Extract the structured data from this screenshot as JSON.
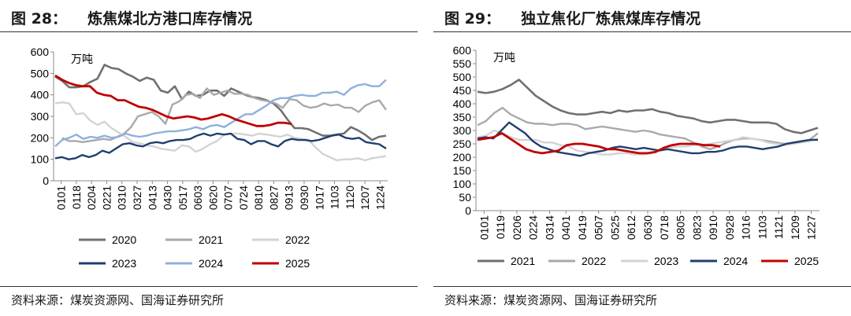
{
  "charts": [
    {
      "figure_no": "图 28：",
      "title": "炼焦煤北方港口库存情况",
      "source": "资料来源：煤炭资源网、国海证券研究所"
    },
    {
      "figure_no": "图 29：",
      "title": "独立焦化厂炼焦煤库存情况",
      "source": "资料来源：煤炭资源网、国海证券研究所"
    }
  ],
  "chart_data": [
    {
      "type": "line",
      "title": "炼焦煤北方港口库存情况",
      "unit_label": "万吨",
      "ylim": [
        0,
        600
      ],
      "yticks": [
        "0",
        "100",
        "200",
        "300",
        "400",
        "500",
        "600"
      ],
      "x_ticks": [
        "0101",
        "0118",
        "0204",
        "0221",
        "0310",
        "0327",
        "0413",
        "0430",
        "0517",
        "0603",
        "0620",
        "0707",
        "0724",
        "0810",
        "0827",
        "0913",
        "0930",
        "1017",
        "1103",
        "1120",
        "1207",
        "1224"
      ],
      "legend": [
        [
          "2020",
          "2021",
          "2022"
        ],
        [
          "2023",
          "2024",
          "2025"
        ]
      ],
      "series": [
        {
          "name": "2020",
          "color": "#707070",
          "values": [
            485,
            465,
            435,
            435,
            440,
            460,
            475,
            540,
            525,
            520,
            500,
            485,
            465,
            480,
            470,
            420,
            410,
            440,
            380,
            415,
            395,
            400,
            420,
            420,
            395,
            430,
            415,
            400,
            390,
            385,
            375,
            360,
            330,
            285,
            245,
            245,
            240,
            225,
            210,
            210,
            215,
            220,
            250,
            235,
            215,
            190,
            205,
            210
          ]
        },
        {
          "name": "2021",
          "color": "#a9a9a9",
          "values": [
            null,
            200,
            185,
            185,
            180,
            185,
            190,
            195,
            190,
            205,
            220,
            250,
            300,
            310,
            320,
            300,
            265,
            355,
            370,
            400,
            405,
            385,
            430,
            400,
            410,
            420,
            405,
            405,
            400,
            385,
            375,
            370,
            360,
            340,
            380,
            375,
            350,
            340,
            345,
            360,
            350,
            355,
            340,
            340,
            320,
            350,
            365,
            375,
            330
          ]
        },
        {
          "name": "2022",
          "color": "#d3d3d3",
          "values": [
            360,
            365,
            360,
            310,
            315,
            280,
            260,
            275,
            245,
            225,
            205,
            180,
            175,
            165,
            160,
            150,
            145,
            140,
            165,
            160,
            135,
            150,
            170,
            185,
            215,
            220,
            220,
            215,
            210,
            220,
            215,
            210,
            205,
            215,
            200,
            195,
            190,
            155,
            125,
            110,
            95,
            100,
            100,
            105,
            95,
            105,
            110,
            115
          ]
        },
        {
          "name": "2023",
          "color": "#1f3f6e",
          "values": [
            105,
            110,
            100,
            105,
            120,
            110,
            120,
            140,
            130,
            150,
            170,
            175,
            165,
            160,
            175,
            180,
            175,
            185,
            190,
            190,
            195,
            210,
            220,
            210,
            220,
            215,
            220,
            195,
            190,
            170,
            185,
            185,
            170,
            160,
            185,
            195,
            190,
            190,
            185,
            190,
            200,
            210,
            215,
            200,
            195,
            200,
            180,
            175,
            170,
            150
          ]
        },
        {
          "name": "2024",
          "color": "#8fb0dc",
          "values": [
            160,
            190,
            200,
            215,
            195,
            205,
            200,
            210,
            200,
            205,
            220,
            210,
            205,
            210,
            220,
            225,
            230,
            230,
            235,
            240,
            250,
            240,
            255,
            260,
            250,
            270,
            290,
            310,
            310,
            330,
            350,
            375,
            385,
            385,
            395,
            400,
            395,
            395,
            410,
            410,
            415,
            400,
            430,
            445,
            450,
            440,
            440,
            470
          ]
        },
        {
          "name": "2025",
          "color": "#c00000",
          "values": [
            490,
            470,
            455,
            445,
            440,
            440,
            410,
            400,
            395,
            375,
            375,
            360,
            345,
            340,
            330,
            315,
            300,
            290,
            295,
            300,
            295,
            285,
            290,
            300,
            310,
            300,
            285,
            275,
            265,
            255,
            255,
            260,
            270,
            270,
            265
          ]
        }
      ]
    },
    {
      "type": "line",
      "title": "独立焦化厂炼焦煤库存情况",
      "unit_label": "万吨",
      "ylim": [
        0,
        600
      ],
      "yticks": [
        "0",
        "50",
        "100",
        "150",
        "200",
        "250",
        "300",
        "350",
        "400",
        "450",
        "500",
        "550",
        "600"
      ],
      "x_ticks": [
        "0101",
        "0119",
        "0206",
        "0224",
        "0314",
        "0401",
        "0419",
        "0507",
        "0525",
        "0612",
        "0630",
        "0718",
        "0805",
        "0823",
        "0910",
        "0928",
        "1016",
        "1103",
        "1121",
        "1209",
        "1227"
      ],
      "legend": [
        [
          "2021",
          "2022",
          "2023",
          "2024",
          "2025"
        ]
      ],
      "series": [
        {
          "name": "2021",
          "color": "#707070",
          "values": [
            445,
            440,
            445,
            455,
            470,
            490,
            460,
            430,
            410,
            390,
            375,
            365,
            360,
            360,
            365,
            370,
            365,
            375,
            370,
            375,
            375,
            380,
            370,
            365,
            355,
            350,
            345,
            335,
            330,
            335,
            340,
            340,
            335,
            330,
            330,
            330,
            325,
            305,
            295,
            290,
            300,
            310
          ]
        },
        {
          "name": "2022",
          "color": "#a9a9a9",
          "values": [
            320,
            335,
            365,
            385,
            360,
            345,
            330,
            325,
            325,
            320,
            325,
            325,
            320,
            305,
            310,
            315,
            310,
            305,
            300,
            295,
            300,
            295,
            285,
            280,
            275,
            270,
            255,
            240,
            230,
            240,
            255,
            265,
            270,
            270,
            265,
            260,
            255,
            250,
            255,
            260,
            265,
            290
          ]
        },
        {
          "name": "2023",
          "color": "#d3d3d3",
          "values": [
            275,
            280,
            300,
            290,
            275,
            265,
            265,
            265,
            255,
            255,
            245,
            240,
            225,
            220,
            215,
            210,
            210,
            215,
            215,
            210,
            210,
            215,
            225,
            235,
            240,
            240,
            245,
            245,
            250,
            255,
            260,
            265,
            275,
            270,
            265,
            255,
            250,
            245,
            250,
            255,
            260,
            270
          ]
        },
        {
          "name": "2024",
          "color": "#1f3f6e",
          "values": [
            270,
            275,
            270,
            300,
            330,
            310,
            290,
            260,
            240,
            230,
            220,
            215,
            210,
            205,
            215,
            220,
            225,
            235,
            240,
            235,
            230,
            235,
            230,
            225,
            230,
            225,
            220,
            215,
            215,
            220,
            220,
            225,
            235,
            240,
            240,
            235,
            230,
            235,
            240,
            250,
            255,
            260,
            265,
            265
          ]
        },
        {
          "name": "2025",
          "color": "#c00000",
          "values": [
            265,
            270,
            275,
            290,
            270,
            250,
            230,
            220,
            215,
            220,
            225,
            245,
            250,
            250,
            245,
            240,
            230,
            230,
            225,
            220,
            215,
            215,
            220,
            235,
            245,
            250,
            250,
            250,
            245,
            245,
            240
          ]
        }
      ]
    }
  ]
}
